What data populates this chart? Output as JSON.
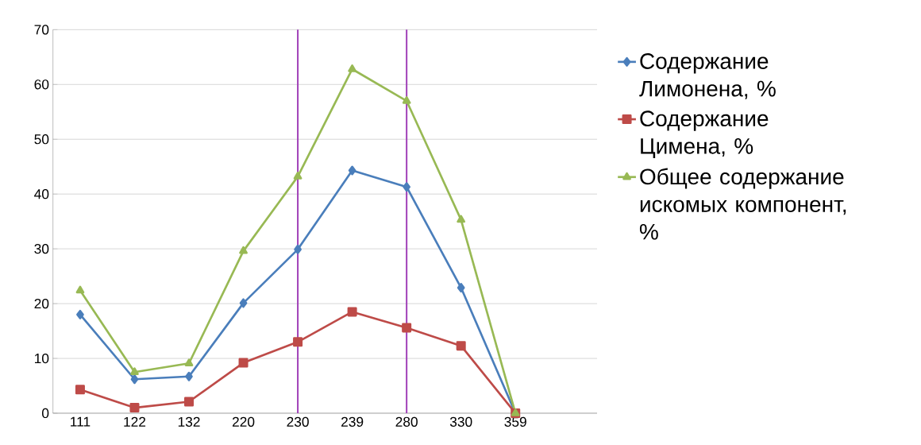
{
  "chart_data": {
    "type": "line",
    "categories": [
      "111",
      "122",
      "132",
      "220",
      "230",
      "239",
      "280",
      "330",
      "359",
      null
    ],
    "series": [
      {
        "name": "Содержание Лимонена, %",
        "color": "#4a7ebb",
        "marker": "diamond",
        "values": [
          18,
          6.2,
          6.7,
          20.1,
          29.9,
          44.3,
          41.3,
          22.9,
          0,
          null
        ]
      },
      {
        "name": "Содержание Цимена, %",
        "color": "#be4b48",
        "marker": "square",
        "values": [
          4.3,
          1.0,
          2.1,
          9.2,
          13.0,
          18.5,
          15.6,
          12.3,
          0,
          null
        ]
      },
      {
        "name": "Общее содержание искомых компонент, %",
        "color": "#98b954",
        "marker": "triangle",
        "values": [
          22.4,
          7.5,
          9.1,
          29.6,
          43.2,
          62.8,
          57.0,
          35.3,
          0,
          null
        ]
      }
    ],
    "ylim": [
      0,
      70
    ],
    "yticks": [
      0,
      10,
      20,
      30,
      40,
      50,
      60,
      70
    ],
    "grid": "y",
    "legend": "right",
    "ref_lines": [
      {
        "axis": "x",
        "value": "230",
        "color": "#a040b8"
      },
      {
        "axis": "x",
        "value": "280",
        "color": "#a040b8"
      }
    ]
  }
}
